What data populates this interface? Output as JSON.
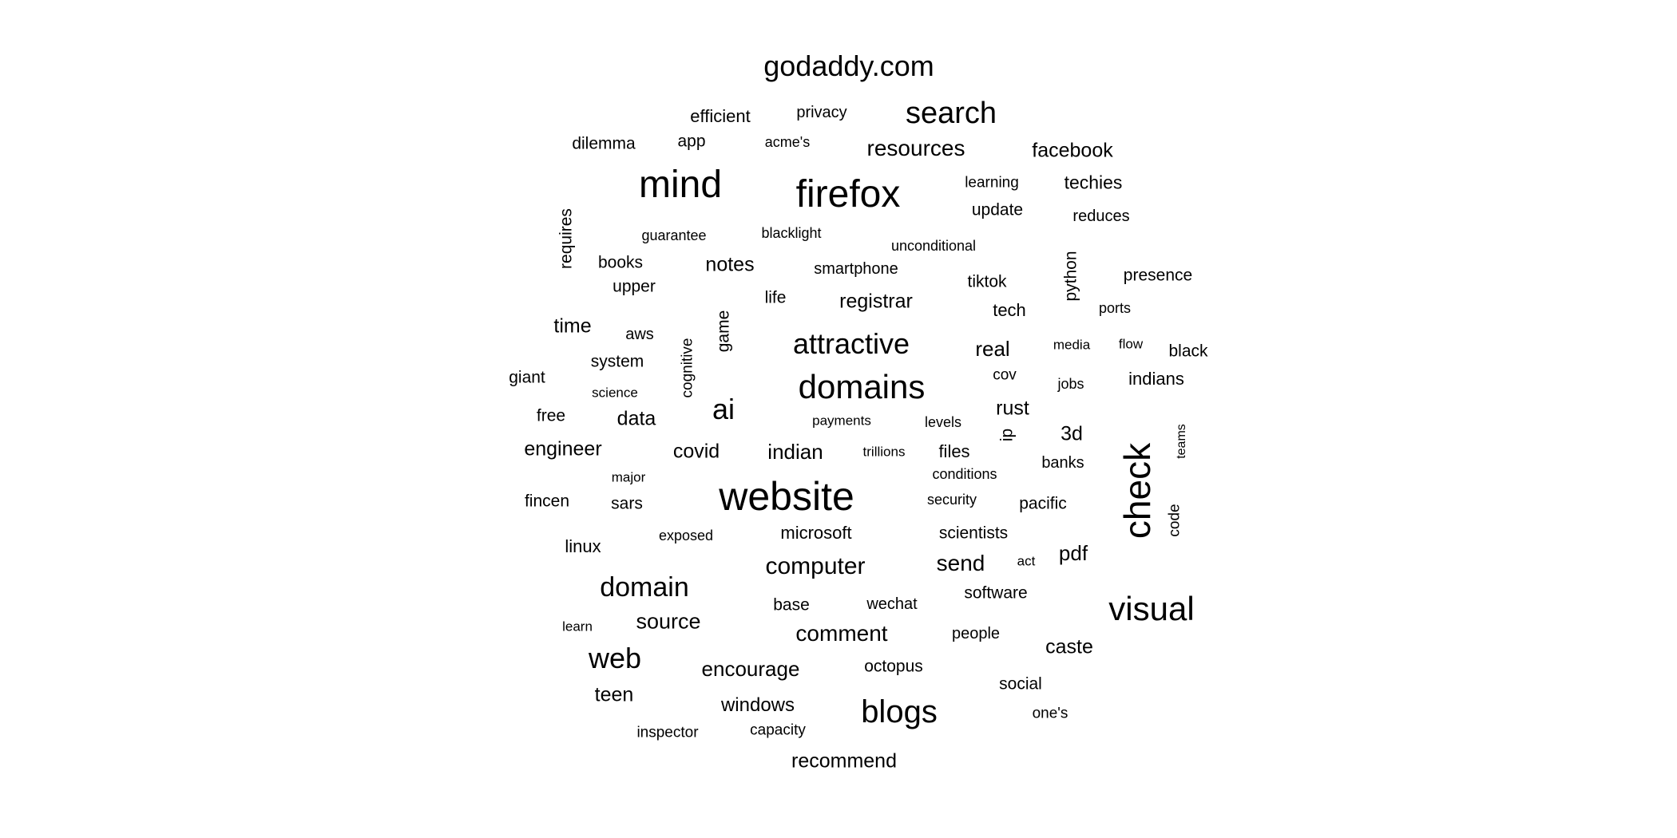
{
  "text_color": "#000000",
  "background_color": "#ffffff",
  "words": [
    {
      "text": "godaddy.com",
      "weight": 36,
      "vertical": false
    },
    {
      "text": "efficient",
      "weight": 22,
      "vertical": false
    },
    {
      "text": "privacy",
      "weight": 20,
      "vertical": false
    },
    {
      "text": "search",
      "weight": 38,
      "vertical": false
    },
    {
      "text": "dilemma",
      "weight": 21,
      "vertical": false
    },
    {
      "text": "app",
      "weight": 21,
      "vertical": false
    },
    {
      "text": "acme's",
      "weight": 18,
      "vertical": false
    },
    {
      "text": "resources",
      "weight": 28,
      "vertical": false
    },
    {
      "text": "facebook",
      "weight": 25,
      "vertical": false
    },
    {
      "text": "mind",
      "weight": 48,
      "vertical": false
    },
    {
      "text": "firefox",
      "weight": 48,
      "vertical": false
    },
    {
      "text": "learning",
      "weight": 19,
      "vertical": false
    },
    {
      "text": "techies",
      "weight": 23,
      "vertical": false
    },
    {
      "text": "update",
      "weight": 21,
      "vertical": false
    },
    {
      "text": "reduces",
      "weight": 20,
      "vertical": false
    },
    {
      "text": "requires",
      "weight": 21,
      "vertical": true
    },
    {
      "text": "guarantee",
      "weight": 18,
      "vertical": false
    },
    {
      "text": "blacklight",
      "weight": 18,
      "vertical": false
    },
    {
      "text": "unconditional",
      "weight": 18,
      "vertical": false
    },
    {
      "text": "books",
      "weight": 21,
      "vertical": false
    },
    {
      "text": "notes",
      "weight": 25,
      "vertical": false
    },
    {
      "text": "smartphone",
      "weight": 20,
      "vertical": false
    },
    {
      "text": "python",
      "weight": 21,
      "vertical": true
    },
    {
      "text": "presence",
      "weight": 21,
      "vertical": false
    },
    {
      "text": "upper",
      "weight": 21,
      "vertical": false
    },
    {
      "text": "tiktok",
      "weight": 21,
      "vertical": false
    },
    {
      "text": "life",
      "weight": 21,
      "vertical": false
    },
    {
      "text": "registrar",
      "weight": 25,
      "vertical": false
    },
    {
      "text": "time",
      "weight": 25,
      "vertical": false
    },
    {
      "text": "aws",
      "weight": 20,
      "vertical": false
    },
    {
      "text": "game",
      "weight": 21,
      "vertical": true
    },
    {
      "text": "tech",
      "weight": 22,
      "vertical": false
    },
    {
      "text": "ports",
      "weight": 18,
      "vertical": false
    },
    {
      "text": "attractive",
      "weight": 36,
      "vertical": false
    },
    {
      "text": "real",
      "weight": 26,
      "vertical": false
    },
    {
      "text": "media",
      "weight": 17,
      "vertical": false
    },
    {
      "text": "flow",
      "weight": 17,
      "vertical": false
    },
    {
      "text": "black",
      "weight": 21,
      "vertical": false
    },
    {
      "text": "system",
      "weight": 21,
      "vertical": false
    },
    {
      "text": "cognitive",
      "weight": 19,
      "vertical": true
    },
    {
      "text": "giant",
      "weight": 21,
      "vertical": false
    },
    {
      "text": "domains",
      "weight": 42,
      "vertical": false
    },
    {
      "text": "cov",
      "weight": 19,
      "vertical": false
    },
    {
      "text": "jobs",
      "weight": 18,
      "vertical": false
    },
    {
      "text": "indians",
      "weight": 22,
      "vertical": false
    },
    {
      "text": "science",
      "weight": 17,
      "vertical": false
    },
    {
      "text": "ai",
      "weight": 36,
      "vertical": false
    },
    {
      "text": "free",
      "weight": 21,
      "vertical": false
    },
    {
      "text": "data",
      "weight": 25,
      "vertical": false
    },
    {
      "text": "payments",
      "weight": 17,
      "vertical": false
    },
    {
      "text": "levels",
      "weight": 18,
      "vertical": false
    },
    {
      "text": "rust",
      "weight": 25,
      "vertical": false
    },
    {
      "text": "ip",
      "weight": 21,
      "vertical": true
    },
    {
      "text": "3d",
      "weight": 25,
      "vertical": false
    },
    {
      "text": "teams",
      "weight": 16,
      "vertical": true
    },
    {
      "text": "engineer",
      "weight": 25,
      "vertical": false
    },
    {
      "text": "covid",
      "weight": 25,
      "vertical": false
    },
    {
      "text": "indian",
      "weight": 26,
      "vertical": false
    },
    {
      "text": "trillions",
      "weight": 17,
      "vertical": false
    },
    {
      "text": "files",
      "weight": 22,
      "vertical": false
    },
    {
      "text": "check",
      "weight": 46,
      "vertical": true
    },
    {
      "text": "banks",
      "weight": 20,
      "vertical": false
    },
    {
      "text": "major",
      "weight": 17,
      "vertical": false
    },
    {
      "text": "conditions",
      "weight": 18,
      "vertical": false
    },
    {
      "text": "fincen",
      "weight": 21,
      "vertical": false
    },
    {
      "text": "sars",
      "weight": 21,
      "vertical": false
    },
    {
      "text": "website",
      "weight": 50,
      "vertical": false
    },
    {
      "text": "security",
      "weight": 18,
      "vertical": false
    },
    {
      "text": "pacific",
      "weight": 21,
      "vertical": false
    },
    {
      "text": "code",
      "weight": 19,
      "vertical": true
    },
    {
      "text": "exposed",
      "weight": 18,
      "vertical": false
    },
    {
      "text": "microsoft",
      "weight": 22,
      "vertical": false
    },
    {
      "text": "scientists",
      "weight": 21,
      "vertical": false
    },
    {
      "text": "linux",
      "weight": 22,
      "vertical": false
    },
    {
      "text": "pdf",
      "weight": 26,
      "vertical": false
    },
    {
      "text": "computer",
      "weight": 30,
      "vertical": false
    },
    {
      "text": "send",
      "weight": 28,
      "vertical": false
    },
    {
      "text": "act",
      "weight": 17,
      "vertical": false
    },
    {
      "text": "domain",
      "weight": 34,
      "vertical": false
    },
    {
      "text": "software",
      "weight": 21,
      "vertical": false
    },
    {
      "text": "base",
      "weight": 21,
      "vertical": false
    },
    {
      "text": "wechat",
      "weight": 20,
      "vertical": false
    },
    {
      "text": "visual",
      "weight": 42,
      "vertical": false
    },
    {
      "text": "learn",
      "weight": 17,
      "vertical": false
    },
    {
      "text": "source",
      "weight": 27,
      "vertical": false
    },
    {
      "text": "comment",
      "weight": 28,
      "vertical": false
    },
    {
      "text": "people",
      "weight": 20,
      "vertical": false
    },
    {
      "text": "caste",
      "weight": 25,
      "vertical": false
    },
    {
      "text": "web",
      "weight": 36,
      "vertical": false
    },
    {
      "text": "encourage",
      "weight": 26,
      "vertical": false
    },
    {
      "text": "octopus",
      "weight": 21,
      "vertical": false
    },
    {
      "text": "social",
      "weight": 21,
      "vertical": false
    },
    {
      "text": "teen",
      "weight": 25,
      "vertical": false
    },
    {
      "text": "windows",
      "weight": 24,
      "vertical": false
    },
    {
      "text": "blogs",
      "weight": 40,
      "vertical": false
    },
    {
      "text": "one's",
      "weight": 19,
      "vertical": false
    },
    {
      "text": "inspector",
      "weight": 19,
      "vertical": false
    },
    {
      "text": "capacity",
      "weight": 19,
      "vertical": false
    },
    {
      "text": "recommend",
      "weight": 25,
      "vertical": false
    }
  ]
}
